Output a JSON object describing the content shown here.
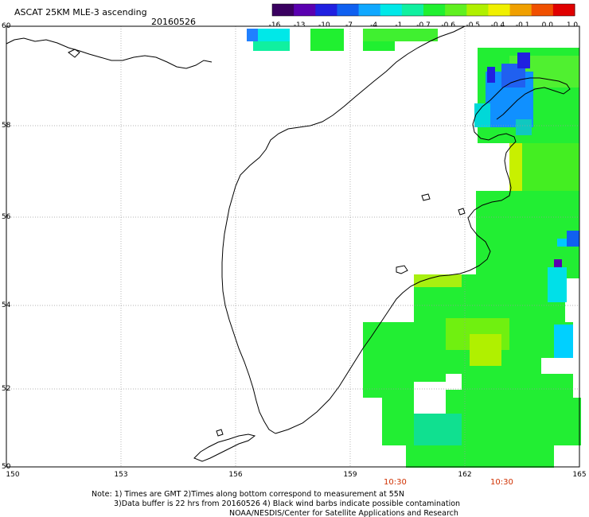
{
  "header": {
    "product": "ASCAT 25KM MLE-3 ascending",
    "date": "20160526"
  },
  "colorbar": {
    "tick_labels": [
      "-16",
      "-13",
      "-10",
      "-7",
      "-4",
      "-1",
      "-0.7",
      "-0.6",
      "-0.5",
      "-0.4",
      "-0.1",
      "0.0",
      "1.0"
    ],
    "colors": [
      "#3a0060",
      "#5a00b0",
      "#2020e0",
      "#1060f0",
      "#10a8ff",
      "#00e8e8",
      "#10f0a0",
      "#20f030",
      "#60f020",
      "#b0f000",
      "#f0f000",
      "#f0a000",
      "#f05000",
      "#e00000"
    ]
  },
  "map": {
    "lat_labels": [
      "60",
      "58",
      "56",
      "54",
      "52",
      "50"
    ],
    "lon_labels": [
      "150",
      "153",
      "156",
      "159",
      "162",
      "165"
    ],
    "time_labels": [
      "10:30",
      "10:30"
    ],
    "time_label_color": "#d03000",
    "coast_color": "#000000",
    "grid_color": "#9a9a9a"
  },
  "footer": {
    "note_line1": "Note: 1) Times are GMT 2)Times along bottom correspond to measurement at 55N",
    "note_line2": "3)Data buffer is 22 hrs from 20160526 4) Black wind barbs indicate possible contamination",
    "credit": "NOAA/NESDIS/Center for Satellite Applications and Research"
  }
}
